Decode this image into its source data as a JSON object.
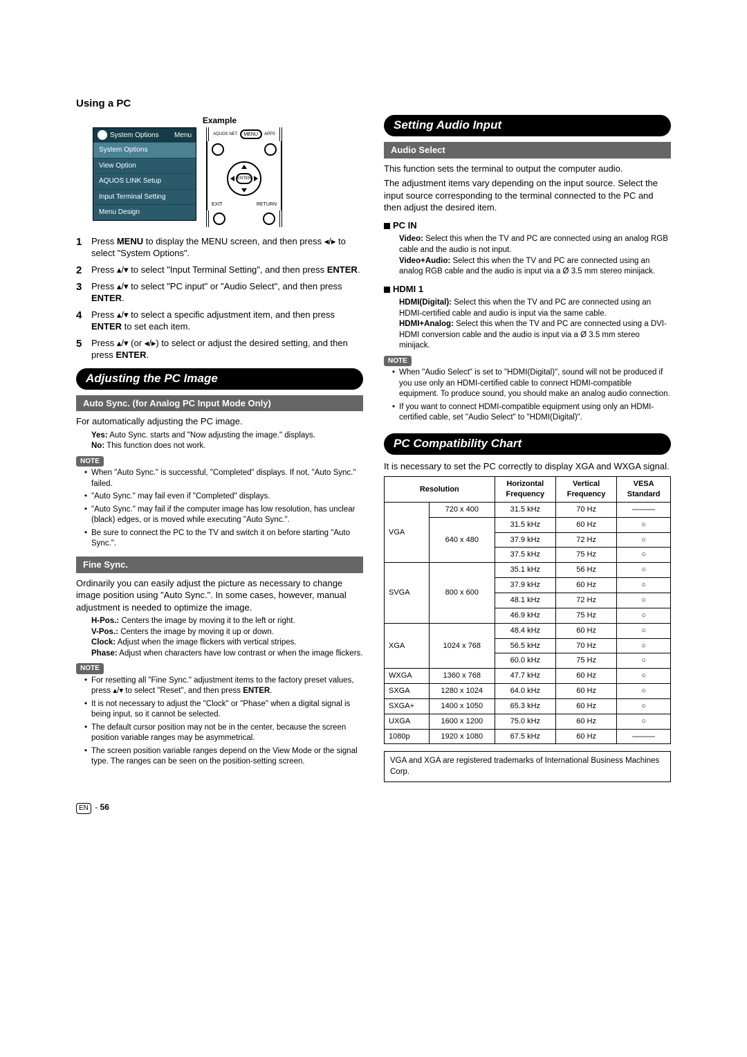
{
  "page_title": "Using a PC",
  "example_label": "Example",
  "osd": {
    "header_left": "System Options",
    "header_right": "Menu",
    "items": [
      "System Options",
      "View Option",
      "AQUOS LINK Setup",
      "Input Terminal Setting",
      "Menu Design"
    ]
  },
  "remote": {
    "top_left": "AQUOS NET",
    "top_mid": "MENU",
    "top_right": "APPS",
    "center": "ENTER",
    "bot_left": "EXIT",
    "bot_right": "RETURN"
  },
  "steps": [
    "Press MENU to display the MENU screen, and then press ◂/▸ to select \"System Options\".",
    "Press ▴/▾ to select \"Input Terminal Setting\", and then press ENTER.",
    "Press ▴/▾ to select \"PC input\" or \"Audio Select\", and then press ENTER.",
    "Press ▴/▾ to select a specific adjustment item, and then press ENTER to set each item.",
    "Press ▴/▾ (or ◂/▸) to select or adjust the desired setting, and then press ENTER."
  ],
  "adjusting_title": "Adjusting the PC Image",
  "autosync_header": "Auto Sync. (for Analog PC Input Mode Only)",
  "autosync_intro": "For automatically adjusting the PC image.",
  "autosync_yes": "Auto Sync. starts and \"Now adjusting the image.\" displays.",
  "autosync_no": "This function does not work.",
  "note_label": "NOTE",
  "autosync_notes": [
    "When \"Auto Sync.\" is successful, \"Completed\" displays. If not, \"Auto Sync.\" failed.",
    "\"Auto Sync.\" may fail even if \"Completed\" displays.",
    "\"Auto Sync.\" may fail if the computer image has low resolution, has unclear (black) edges, or is moved while executing \"Auto Sync.\".",
    "Be sure to connect the PC to the TV and switch it on before starting \"Auto Sync.\"."
  ],
  "finesync_header": "Fine Sync.",
  "finesync_intro": "Ordinarily you can easily adjust the picture as necessary to change image position using \"Auto Sync.\". In some cases, however, manual adjustment is needed to optimize the image.",
  "finesync_defs": {
    "hpos": "Centers the image by moving it to the left or right.",
    "vpos": "Centers the image by moving it up or down.",
    "clock": "Adjust when the image flickers with vertical stripes.",
    "phase": "Adjust when characters have low contrast or when the image flickers."
  },
  "finesync_notes": [
    "For resetting all \"Fine Sync.\" adjustment items to the factory preset values, press ▴/▾ to select \"Reset\", and then press ENTER.",
    "It is not necessary to adjust the \"Clock\" or \"Phase\" when a digital signal is being input, so it cannot be selected.",
    "The default cursor position may not be in the center, because the screen position variable ranges may be asymmetrical.",
    "The screen position variable ranges depend on the View Mode or the signal type. The ranges can be seen on the position-setting screen."
  ],
  "setting_audio_title": "Setting Audio Input",
  "audio_select_header": "Audio Select",
  "audio_intro1": "This function sets the terminal to output the computer audio.",
  "audio_intro2": "The adjustment items vary depending on the input source. Select the input source corresponding to the terminal connected to the PC and then adjust the desired item.",
  "pcin_label": "PC IN",
  "pcin_video": "Select this when the TV and PC are connected using an analog RGB cable and the audio is not input.",
  "pcin_va": "Select this when the TV and PC are connected using an analog RGB cable and the audio is input via a Ø 3.5 mm stereo minijack.",
  "hdmi_label": "HDMI 1",
  "hdmi_digital": "Select this when the TV and PC are connected using an HDMI-certified cable and audio is input via the same cable.",
  "hdmi_analog": "Select this when the TV and PC are connected using a DVI-HDMI conversion cable and the audio is input via a Ø 3.5 mm stereo minijack.",
  "audio_notes": [
    "When \"Audio Select\" is set to \"HDMI(Digital)\", sound will not be produced if you use only an HDMI-certified cable to connect HDMI-compatible equipment. To produce sound, you should make an analog audio connection.",
    "If you want to connect HDMI-compatible equipment using only an HDMI-certified cable, set \"Audio Select\" to \"HDMI(Digital)\"."
  ],
  "compat_title": "PC Compatibility Chart",
  "compat_intro": "It is necessary to set the PC correctly to display XGA and WXGA signal.",
  "compat_headers": [
    "Resolution",
    "Horizontal Frequency",
    "Vertical Frequency",
    "VESA Standard"
  ],
  "compat_rows": [
    {
      "mode": "VGA",
      "res": "720 x 400",
      "h": "31.5 kHz",
      "v": "70 Hz",
      "vesa": "———",
      "rowspan": 1
    },
    {
      "mode": "",
      "res": "640 x 480",
      "h": "31.5 kHz",
      "v": "60 Hz",
      "vesa": "○"
    },
    {
      "mode": "",
      "res": "",
      "h": "37.9 kHz",
      "v": "72 Hz",
      "vesa": "○"
    },
    {
      "mode": "",
      "res": "",
      "h": "37.5 kHz",
      "v": "75 Hz",
      "vesa": "○"
    },
    {
      "mode": "SVGA",
      "res": "800 x 600",
      "h": "35.1 kHz",
      "v": "56 Hz",
      "vesa": "○"
    },
    {
      "mode": "",
      "res": "",
      "h": "37.9 kHz",
      "v": "60 Hz",
      "vesa": "○"
    },
    {
      "mode": "",
      "res": "",
      "h": "48.1 kHz",
      "v": "72 Hz",
      "vesa": "○"
    },
    {
      "mode": "",
      "res": "",
      "h": "46.9 kHz",
      "v": "75 Hz",
      "vesa": "○"
    },
    {
      "mode": "XGA",
      "res": "1024 x 768",
      "h": "48.4 kHz",
      "v": "60 Hz",
      "vesa": "○"
    },
    {
      "mode": "",
      "res": "",
      "h": "56.5 kHz",
      "v": "70 Hz",
      "vesa": "○"
    },
    {
      "mode": "",
      "res": "",
      "h": "60.0 kHz",
      "v": "75 Hz",
      "vesa": "○"
    },
    {
      "mode": "WXGA",
      "res": "1360 x 768",
      "h": "47.7 kHz",
      "v": "60 Hz",
      "vesa": "○"
    },
    {
      "mode": "SXGA",
      "res": "1280 x 1024",
      "h": "64.0 kHz",
      "v": "60 Hz",
      "vesa": "○"
    },
    {
      "mode": "SXGA+",
      "res": "1400 x 1050",
      "h": "65.3 kHz",
      "v": "60 Hz",
      "vesa": "○"
    },
    {
      "mode": "UXGA",
      "res": "1600 x 1200",
      "h": "75.0 kHz",
      "v": "60 Hz",
      "vesa": "○"
    },
    {
      "mode": "1080p",
      "res": "1920 x 1080",
      "h": "67.5 kHz",
      "v": "60 Hz",
      "vesa": "———"
    }
  ],
  "trademark_note": "VGA and XGA are registered trademarks of International Business Machines Corp.",
  "page_number": "56",
  "lang": "EN"
}
